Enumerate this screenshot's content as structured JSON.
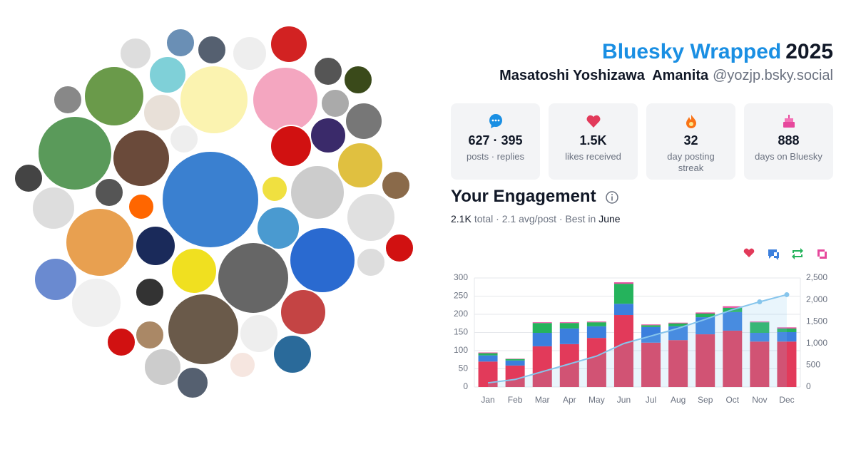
{
  "header": {
    "title": "Bluesky Wrapped",
    "year": "2025",
    "display_name": "Masatoshi Yoshizawa  Amanita",
    "handle": "@yozjp.bsky.social"
  },
  "stats": [
    {
      "value": "627 · 395",
      "label": "posts · replies"
    },
    {
      "value": "1.5K",
      "label": "likes received"
    },
    {
      "value": "32",
      "label": "day posting streak"
    },
    {
      "value": "888",
      "label": "days on Bluesky"
    }
  ],
  "chart_data": {
    "type": "bar",
    "stacked": true,
    "title": "Your Engagement",
    "summary": {
      "total": "2.1K",
      "middle": "total · 2.1 avg/post · Best in",
      "best": "June"
    },
    "categories": [
      "Jan",
      "Feb",
      "Mar",
      "Apr",
      "May",
      "Jun",
      "Jul",
      "Aug",
      "Sep",
      "Oct",
      "Nov",
      "Dec"
    ],
    "series": [
      {
        "color": "#e23a5a",
        "values": [
          70,
          59,
          112,
          118,
          135,
          198,
          122,
          129,
          145,
          155,
          125,
          125
        ]
      },
      {
        "color": "#3b7fdd",
        "values": [
          17,
          14,
          37,
          43,
          32,
          31,
          43,
          38,
          47,
          51,
          24,
          26
        ]
      },
      {
        "color": "#25b35c",
        "values": [
          6,
          4,
          27,
          15,
          11,
          55,
          5,
          8,
          10,
          12,
          29,
          10
        ]
      },
      {
        "color": "#e6489c",
        "values": [
          2,
          1,
          2,
          2,
          2,
          4,
          2,
          2,
          3,
          4,
          2,
          3
        ]
      },
      {
        "type": "line",
        "axis": "y2",
        "color": "#86c5ec",
        "values": [
          95,
          173,
          351,
          529,
          709,
          997,
          1169,
          1346,
          1551,
          1773,
          1953,
          2117
        ]
      }
    ],
    "ylim": [
      0,
      300
    ],
    "yticks": [
      0,
      50,
      100,
      150,
      200,
      250,
      300
    ],
    "y2lim": [
      0,
      2500
    ],
    "y2ticks": [
      0,
      500,
      {
        "value": 1000,
        "label": "1,000"
      },
      {
        "value": 1500,
        "label": "1,500"
      },
      {
        "value": 2000,
        "label": "2,000"
      },
      {
        "value": 2500,
        "label": "2,500"
      }
    ],
    "grid": true
  }
}
